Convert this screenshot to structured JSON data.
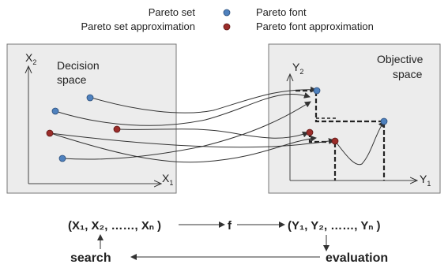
{
  "legend": {
    "pareto_set": "Pareto set",
    "pareto_set_approx": "Pareto set approximation",
    "pareto_front": "Pareto font",
    "pareto_front_approx": "Pareto font approximation",
    "colors": {
      "blue": "#4f81bd",
      "red": "#9b2d2a"
    }
  },
  "decision_space": {
    "title_line1": "Decision",
    "title_line2": "space",
    "y_axis": "X",
    "y_axis_sub": "2",
    "x_axis": "X",
    "x_axis_sub": "1"
  },
  "objective_space": {
    "title_line1": "Objective",
    "title_line2": "space",
    "y_axis": "Y",
    "y_axis_sub": "2",
    "x_axis": "Y",
    "x_axis_sub": "1"
  },
  "flow": {
    "input": "(X₁, X₂, ……, Xₙ )",
    "function": "f",
    "output": "(Y₁, Y₂, ……, Yₙ )",
    "search": "search",
    "evaluation": "evaluation"
  },
  "panel_fill": "#ececec",
  "panel_stroke": "#777777"
}
